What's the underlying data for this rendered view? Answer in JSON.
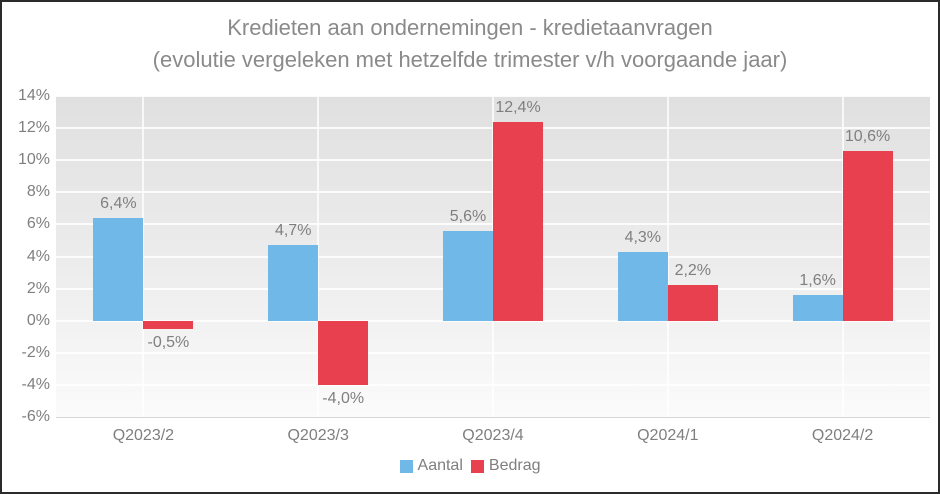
{
  "title": {
    "line1": "Kredieten aan ondernemingen - kredietaanvragen",
    "line2": "(evolutie vergeleken met hetzelfde trimester v/h voorgaande jaar)"
  },
  "colors": {
    "series_aantal": "#6FB8E8",
    "series_bedrag": "#E8404E",
    "text_gray": "#7f7f7f",
    "title_gray": "#8a8a8a",
    "plot_bg_top": "#e0e0e0",
    "plot_bg_bottom": "#fbfbfb",
    "frame_border": "#2b2b2b",
    "axis_line": "#d6d6d6"
  },
  "chart_data": {
    "type": "bar",
    "title": "Kredieten aan ondernemingen - kredietaanvragen",
    "subtitle": "(evolutie vergeleken met hetzelfde trimester v/h voorgaande jaar)",
    "categories": [
      "Q2023/2",
      "Q2023/3",
      "Q2023/4",
      "Q2024/1",
      "Q2024/2"
    ],
    "series": [
      {
        "name": "Aantal",
        "color": "#6FB8E8",
        "values": [
          6.4,
          4.7,
          5.6,
          4.3,
          1.6
        ],
        "labels": [
          "6,4%",
          "4,7%",
          "5,6%",
          "4,3%",
          "1,6%"
        ]
      },
      {
        "name": "Bedrag",
        "color": "#E8404E",
        "values": [
          -0.5,
          -4.0,
          12.4,
          2.2,
          10.6
        ],
        "labels": [
          "-0,5%",
          "-4,0%",
          "12,4%",
          "2,2%",
          "10,6%"
        ]
      }
    ],
    "ylim": [
      -6,
      14
    ],
    "ytick_step": 2,
    "ytick_labels": [
      "14%",
      "12%",
      "10%",
      "8%",
      "6%",
      "4%",
      "2%",
      "0%",
      "-2%",
      "-4%",
      "-6%"
    ],
    "grid": true,
    "legend_position": "bottom"
  }
}
